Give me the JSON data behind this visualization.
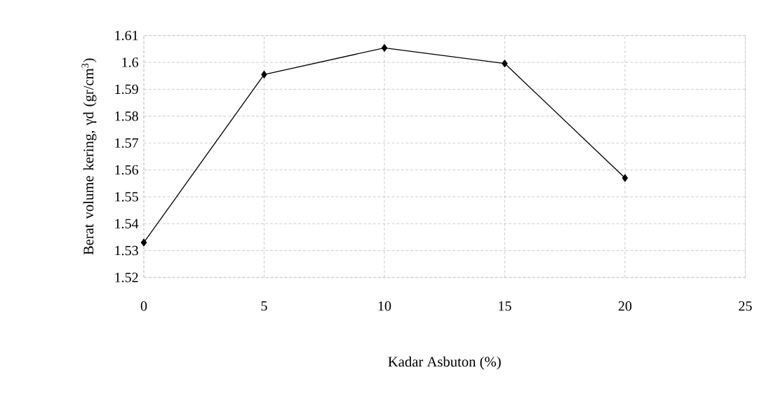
{
  "chart_data": {
    "type": "line",
    "xlabel": "Kadar Asbuton (%)",
    "ylabel": "Berat volume kering, γd (gr/cm$^{3}$)",
    "x": [
      0,
      5,
      10,
      15,
      20
    ],
    "series": [
      {
        "color": "#000000",
        "values": [
          1.533,
          1.5955,
          1.6054,
          1.5996,
          1.557
        ]
      }
    ],
    "xlim": [
      0,
      25
    ],
    "xticks": [
      0,
      5,
      10,
      15,
      20,
      25
    ],
    "ylim": [
      1.52,
      1.61
    ],
    "yticks": [
      1.52,
      1.53,
      1.54,
      1.55,
      1.56,
      1.57,
      1.58,
      1.59,
      1.6,
      1.61
    ],
    "grid": true,
    "marker": "diamond",
    "line_style": "solid"
  }
}
